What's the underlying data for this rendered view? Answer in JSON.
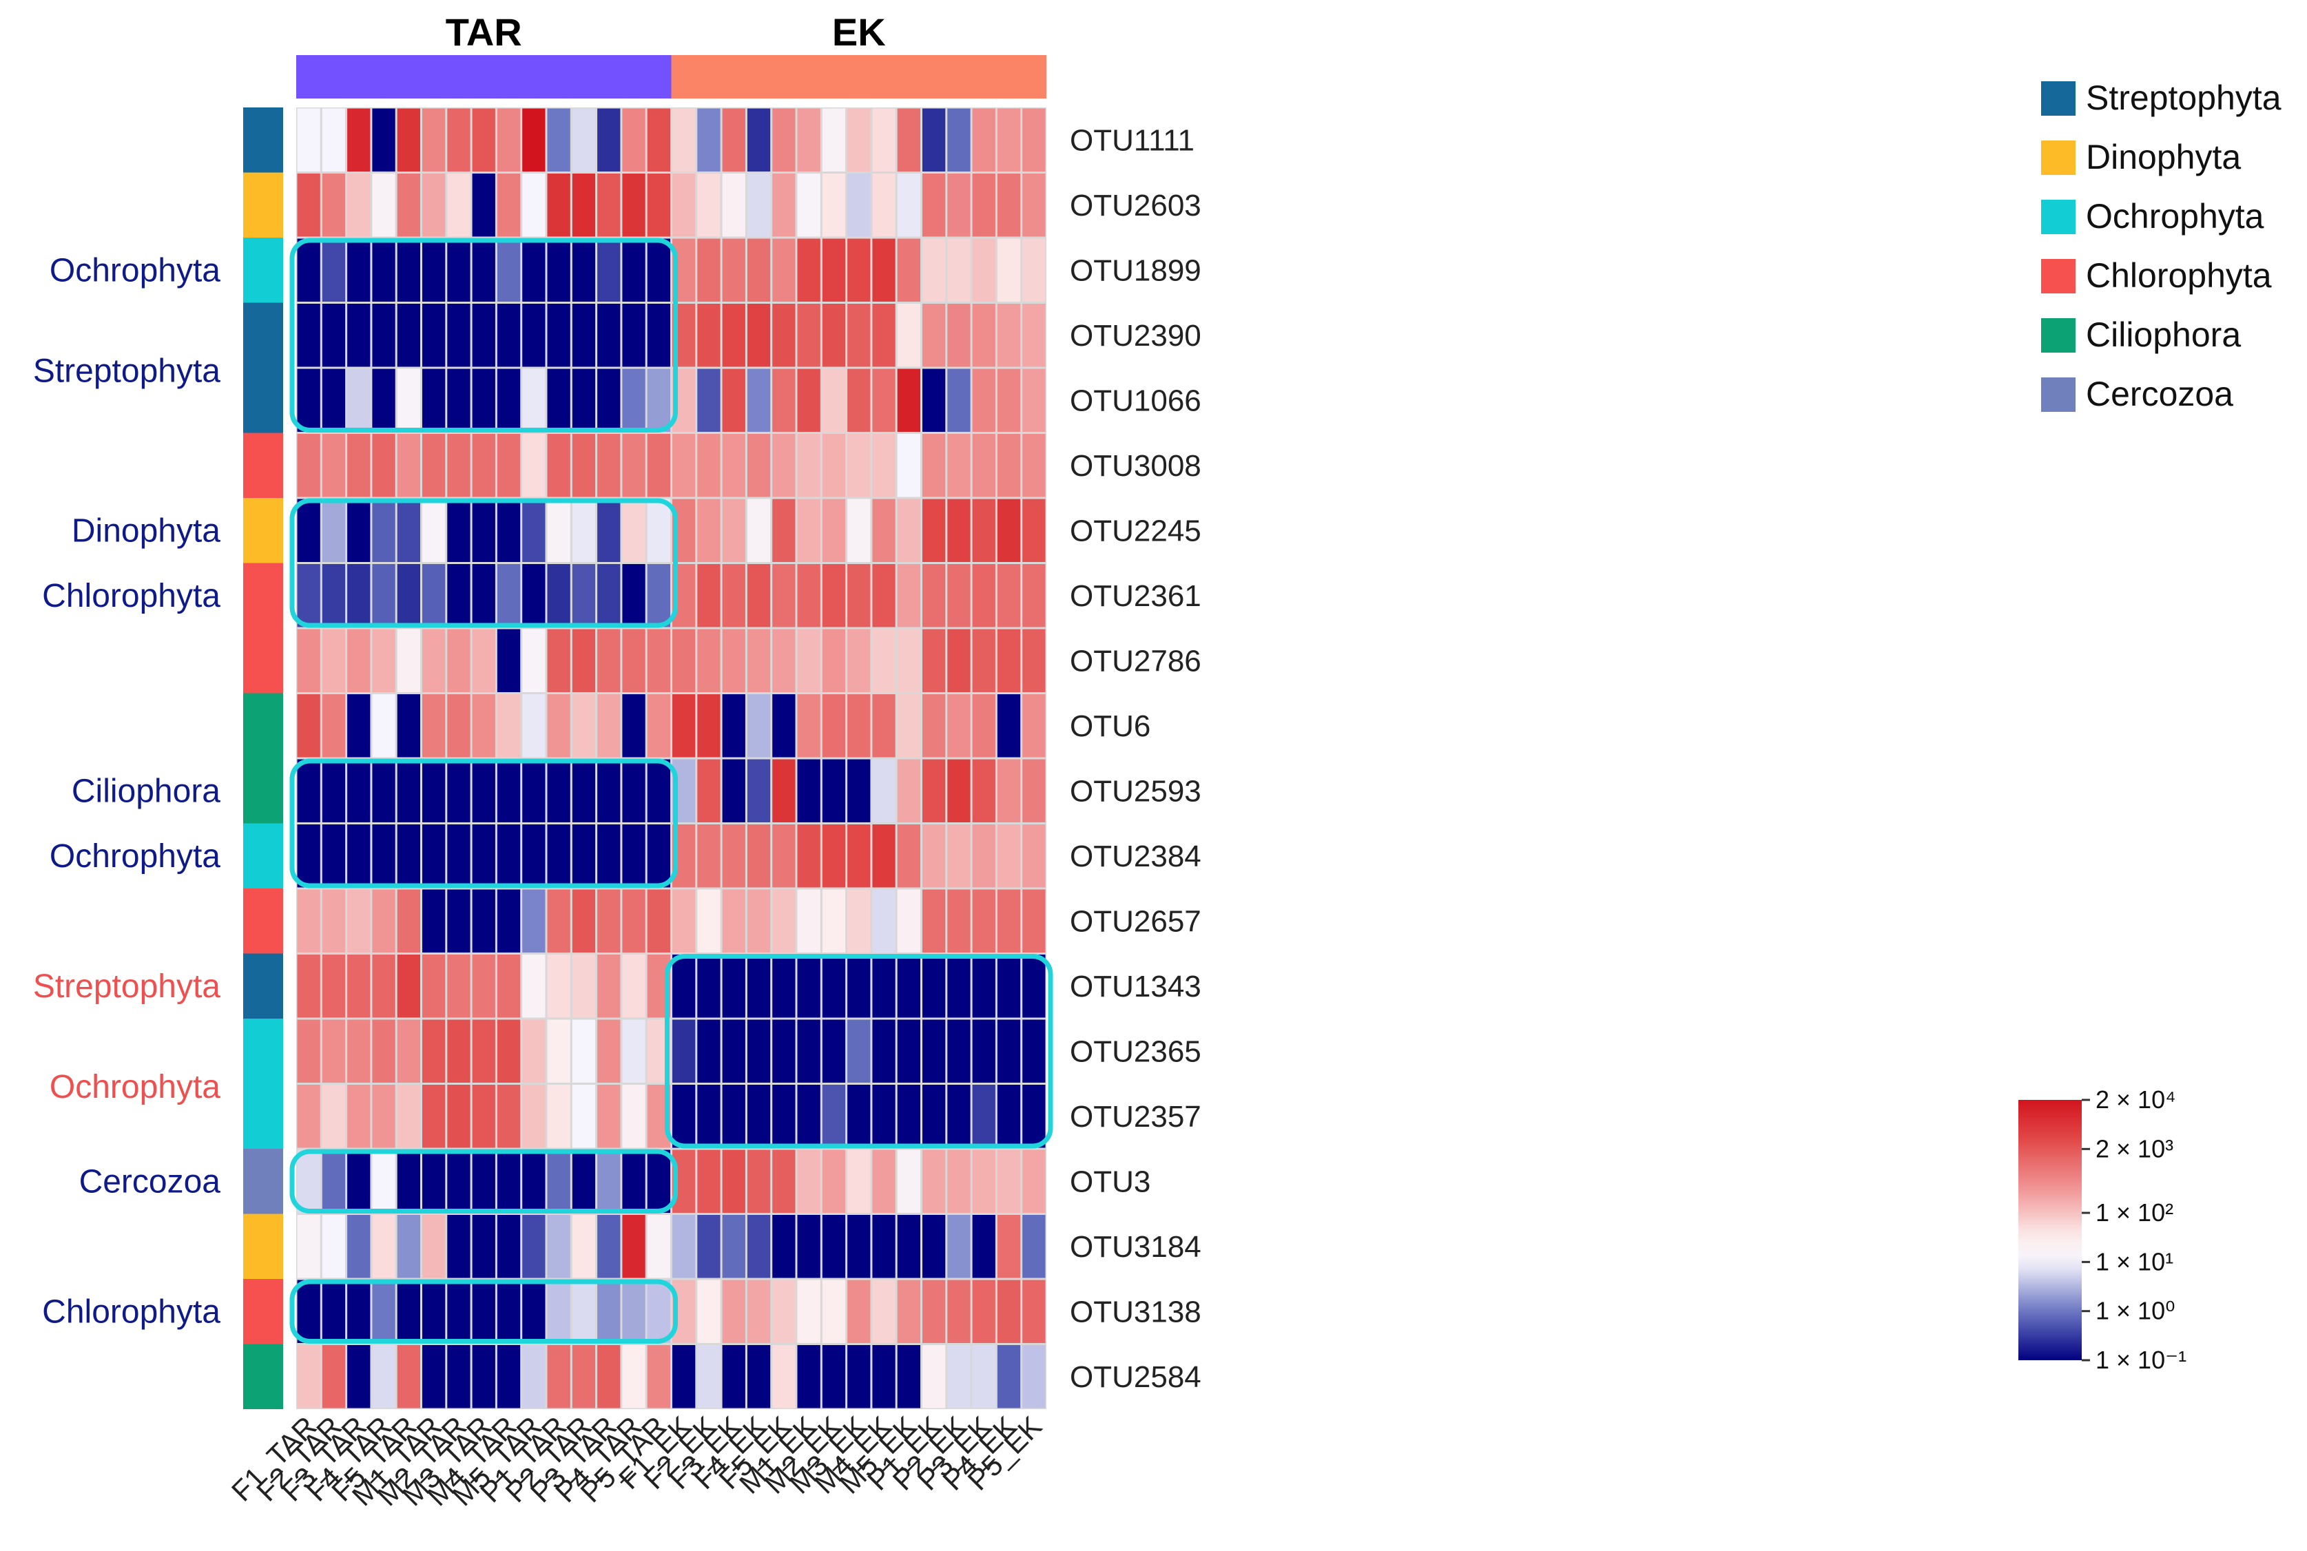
{
  "chart_data": {
    "type": "heatmap",
    "title": "",
    "column_groups": [
      {
        "label": "TAR",
        "color": "#7451ff"
      },
      {
        "label": "EK",
        "color": "#fc8466"
      }
    ],
    "columns": [
      "F1_TAR",
      "F2_TAR",
      "F3_TAR",
      "F4_TAR",
      "F5_TAR",
      "M1_TAR",
      "M2_TAR",
      "M3_TAR",
      "M4_TAR",
      "M5_TAR",
      "P1_TAR",
      "P2_TAR",
      "P3_TAR",
      "P4_TAR",
      "P5_TAR",
      "F1_EK",
      "F2_EK",
      "F3_EK",
      "F4_EK",
      "F5_EK",
      "M1_EK",
      "M2_EK",
      "M3_EK",
      "M4_EK",
      "M5_EK",
      "P1_EK",
      "P2_EK",
      "P3_EK",
      "P4_EK",
      "P5_EK"
    ],
    "rows": [
      "OTU1111",
      "OTU2603",
      "OTU1899",
      "OTU2390",
      "OTU1066",
      "OTU3008",
      "OTU2245",
      "OTU2361",
      "OTU2786",
      "OTU6",
      "OTU2593",
      "OTU2384",
      "OTU2657",
      "OTU1343",
      "OTU2365",
      "OTU2357",
      "OTU3",
      "OTU3184",
      "OTU3138",
      "OTU2584"
    ],
    "row_phylum": [
      "Streptophyta",
      "Dinophyta",
      "Ochrophyta",
      "Streptophyta",
      "Streptophyta",
      "Chlorophyta",
      "Dinophyta",
      "Chlorophyta",
      "Chlorophyta",
      "Ciliophora",
      "Ciliophora",
      "Ochrophyta",
      "Chlorophyta",
      "Streptophyta",
      "Ochrophyta",
      "Ochrophyta",
      "Cercozoa",
      "Dinophyta",
      "Chlorophyta",
      "Ciliophora"
    ],
    "value_scale": "log10 abundance (-1 = 1×10⁻¹ ... 4.3 = 2×10⁴)",
    "values_log10": [
      [
        1.0,
        1.0,
        4.0,
        -1,
        3.8,
        2.7,
        3.1,
        3.3,
        2.7,
        4.3,
        0.0,
        0.8,
        -0.6,
        2.7,
        3.4,
        1.8,
        0.1,
        3.0,
        -0.6,
        2.7,
        2.4,
        1.2,
        2.0,
        1.7,
        3.0,
        -0.6,
        -0.1,
        2.6,
        2.5,
        2.6
      ],
      [
        3.3,
        2.8,
        2.0,
        1.2,
        2.9,
        2.3,
        1.7,
        -1,
        2.8,
        1.0,
        3.8,
        3.9,
        3.3,
        3.8,
        3.5,
        2.1,
        1.7,
        1.3,
        0.8,
        2.4,
        1.1,
        1.6,
        0.7,
        1.7,
        0.9,
        2.9,
        2.7,
        2.9,
        2.9,
        2.6
      ],
      [
        -1,
        -0.4,
        -1,
        -1,
        -1,
        -1,
        -1,
        -1,
        -0.1,
        -1,
        -1,
        -1,
        -0.5,
        -1,
        -1,
        2.7,
        3.0,
        2.9,
        3.0,
        2.7,
        3.5,
        3.6,
        3.5,
        3.7,
        2.9,
        1.8,
        1.8,
        2.0,
        1.6,
        1.8
      ],
      [
        -1,
        -1,
        -1,
        -1,
        -1,
        -1,
        -1,
        -1,
        -1,
        -1,
        -1,
        -1,
        -1,
        -1,
        -1,
        3.2,
        3.4,
        3.5,
        3.6,
        3.4,
        3.2,
        3.4,
        3.2,
        3.3,
        1.6,
        2.6,
        2.7,
        2.6,
        2.4,
        2.3
      ],
      [
        -1,
        -1,
        0.7,
        -1,
        1.1,
        -1,
        -1,
        -1,
        -1,
        0.9,
        -1,
        -1,
        -1,
        0.0,
        0.3,
        2.1,
        -0.3,
        3.4,
        0.1,
        3.0,
        3.4,
        1.9,
        3.2,
        3.0,
        4.1,
        -1,
        -0.1,
        2.7,
        2.7,
        2.4
      ],
      [
        2.9,
        2.7,
        3.0,
        3.1,
        2.6,
        3.0,
        3.0,
        3.0,
        3.0,
        1.7,
        3.1,
        3.1,
        3.0,
        2.8,
        3.0,
        2.5,
        2.6,
        2.5,
        2.7,
        2.4,
        2.1,
        2.2,
        2.0,
        2.0,
        1.0,
        2.6,
        2.5,
        2.6,
        2.7,
        2.6
      ],
      [
        -1,
        0.4,
        -1,
        -0.2,
        -0.4,
        1.1,
        -1,
        -1,
        -1,
        -0.4,
        1.2,
        0.9,
        -0.5,
        1.8,
        0.9,
        2.8,
        2.5,
        2.3,
        1.2,
        3.2,
        2.2,
        2.4,
        1.2,
        2.7,
        2.1,
        3.5,
        3.6,
        3.4,
        3.8,
        3.4
      ],
      [
        -0.4,
        -0.5,
        -0.6,
        -0.2,
        -0.6,
        -0.2,
        -1,
        -1,
        -0.1,
        -1,
        -0.6,
        -0.3,
        -0.5,
        -1,
        -0.1,
        2.9,
        3.3,
        3.1,
        3.3,
        3.0,
        3.1,
        3.3,
        3.2,
        3.3,
        2.4,
        3.0,
        3.0,
        3.1,
        3.0,
        3.0
      ],
      [
        2.6,
        2.2,
        2.5,
        2.2,
        1.3,
        2.3,
        2.5,
        2.2,
        -1,
        1.1,
        3.2,
        3.3,
        3.0,
        3.0,
        2.9,
        2.9,
        2.7,
        2.6,
        2.5,
        2.4,
        2.1,
        2.5,
        2.3,
        1.9,
        1.9,
        3.2,
        3.4,
        3.2,
        3.3,
        3.2
      ],
      [
        3.4,
        2.8,
        -1,
        1.0,
        -1,
        2.8,
        2.9,
        2.6,
        2.0,
        0.9,
        2.5,
        2.0,
        2.3,
        -1,
        2.6,
        3.7,
        3.7,
        -1,
        0.5,
        -1,
        2.7,
        3.0,
        3.0,
        3.0,
        1.9,
        2.8,
        2.6,
        2.8,
        -1,
        2.6
      ],
      [
        -1,
        -1,
        -1,
        -1,
        -1,
        -1,
        -1,
        -1,
        -1,
        -1,
        -1,
        -1,
        -1,
        -1,
        -1,
        0.5,
        3.3,
        -1,
        -0.4,
        3.8,
        -1,
        -1,
        -1,
        0.8,
        2.3,
        3.4,
        3.7,
        3.3,
        2.6,
        2.8
      ],
      [
        -1,
        -1,
        -1,
        -1,
        -1,
        -1,
        -1,
        -1,
        -1,
        -1,
        -1,
        -1,
        -1,
        -1,
        -1,
        2.9,
        2.9,
        2.9,
        3.0,
        2.9,
        3.4,
        3.5,
        3.5,
        3.7,
        2.9,
        2.3,
        2.2,
        2.4,
        2.2,
        2.4
      ],
      [
        2.3,
        2.3,
        2.1,
        2.5,
        3.0,
        -1,
        -1,
        -1,
        -1,
        0.1,
        3.0,
        3.3,
        3.0,
        3.0,
        3.2,
        2.2,
        1.5,
        2.3,
        2.3,
        2.0,
        1.3,
        1.5,
        1.8,
        0.8,
        1.3,
        3.0,
        3.0,
        3.0,
        3.0,
        3.0
      ],
      [
        3.1,
        3.1,
        3.1,
        3.1,
        3.6,
        3.0,
        2.9,
        2.9,
        3.0,
        1.2,
        1.7,
        1.8,
        2.6,
        1.7,
        2.7,
        -1,
        -1,
        -1,
        -1,
        -1,
        -1,
        -1,
        -1,
        -1,
        -1,
        -1,
        -1,
        -1,
        -1,
        -1
      ],
      [
        2.8,
        2.6,
        2.7,
        2.9,
        2.6,
        3.3,
        3.4,
        3.3,
        3.4,
        2.0,
        1.5,
        1.0,
        2.6,
        0.9,
        1.8,
        -0.6,
        -1,
        -1,
        -1,
        -1,
        -1,
        -1,
        -0.1,
        -1,
        -1,
        -1,
        -1,
        -1,
        -1,
        -1
      ],
      [
        2.5,
        1.8,
        2.5,
        2.5,
        2.0,
        3.3,
        3.4,
        3.3,
        3.2,
        2.0,
        1.6,
        1.0,
        2.5,
        1.3,
        2.5,
        -1,
        -1,
        -1,
        -1,
        -1,
        -1,
        -0.3,
        -1,
        -1,
        -1,
        -1,
        -1,
        -0.5,
        -1,
        -1
      ],
      [
        0.8,
        -0.1,
        -1,
        1.0,
        -1,
        -1,
        -1,
        -1,
        -1,
        -1,
        -0.1,
        -1,
        0.2,
        -1,
        -1,
        3.2,
        3.3,
        3.4,
        3.2,
        3.2,
        2.1,
        2.4,
        1.7,
        2.4,
        1.2,
        2.3,
        2.3,
        2.2,
        2.1,
        2.3
      ],
      [
        1.2,
        1.0,
        -0.1,
        1.7,
        0.2,
        2.1,
        -1,
        -1,
        -1,
        -0.4,
        0.5,
        1.6,
        -0.2,
        4.0,
        1.2,
        0.5,
        -0.4,
        -0.1,
        -0.4,
        -1,
        -1,
        -1,
        -1,
        -1,
        -1,
        -1,
        0.2,
        -1,
        3.0,
        -0.1
      ],
      [
        -1,
        -1,
        -1,
        0.0,
        -1,
        -1,
        -1,
        -1,
        -1,
        -1,
        0.6,
        0.8,
        0.2,
        0.4,
        0.6,
        2.1,
        1.5,
        2.4,
        2.3,
        1.9,
        1.4,
        1.5,
        2.6,
        1.8,
        2.6,
        2.9,
        3.0,
        3.1,
        3.2,
        3.1
      ],
      [
        2.0,
        3.1,
        -1,
        0.8,
        3.1,
        -1,
        -1,
        -1,
        -1,
        0.7,
        3.0,
        3.0,
        3.2,
        1.5,
        2.7,
        -1,
        0.8,
        -1,
        -1,
        1.7,
        -1,
        -1,
        -1,
        -1,
        -1,
        1.3,
        0.8,
        0.8,
        -0.2,
        0.6
      ]
    ],
    "highlight_boxes": [
      {
        "rows": [
          "OTU1899",
          "OTU1066"
        ],
        "cols": [
          "F1_TAR",
          "P5_TAR"
        ]
      },
      {
        "rows": [
          "OTU2245",
          "OTU2361"
        ],
        "cols": [
          "F1_TAR",
          "P5_TAR"
        ]
      },
      {
        "rows": [
          "OTU2593",
          "OTU2384"
        ],
        "cols": [
          "F1_TAR",
          "P5_TAR"
        ]
      },
      {
        "rows": [
          "OTU1343",
          "OTU2357"
        ],
        "cols": [
          "F1_EK",
          "P5_EK"
        ]
      },
      {
        "rows": [
          "OTU3",
          "OTU3"
        ],
        "cols": [
          "F1_TAR",
          "P5_TAR"
        ]
      },
      {
        "rows": [
          "OTU3138",
          "OTU3138"
        ],
        "cols": [
          "F1_TAR",
          "P5_TAR"
        ]
      }
    ],
    "side_labels": [
      {
        "text": "Ochrophyta",
        "row": "OTU1899",
        "color": "#0f1a8a"
      },
      {
        "text": "Streptophyta",
        "row": "OTU2390",
        "offset": 0.55,
        "color": "#0f1a8a"
      },
      {
        "text": "Dinophyta",
        "row": "OTU2245",
        "color": "#0f1a8a"
      },
      {
        "text": "Chlorophyta",
        "row": "OTU2361",
        "color": "#0f1a8a"
      },
      {
        "text": "Ciliophora",
        "row": "OTU2593",
        "color": "#0f1a8a"
      },
      {
        "text": "Ochrophyta",
        "row": "OTU2384",
        "color": "#0f1a8a"
      },
      {
        "text": "Streptophyta",
        "row": "OTU1343",
        "color": "#ef4f4f"
      },
      {
        "text": "Ochrophyta",
        "row": "OTU2365",
        "offset": 0.55,
        "color": "#ef4f4f"
      },
      {
        "text": "Cercozoa",
        "row": "OTU3",
        "color": "#0f1a8a"
      },
      {
        "text": "Chlorophyta",
        "row": "OTU3138",
        "color": "#0f1a8a"
      }
    ],
    "legend": [
      {
        "label": "Streptophyta",
        "color": "#14699a"
      },
      {
        "label": "Dinophyta",
        "color": "#fcbb27"
      },
      {
        "label": "Ochrophyta",
        "color": "#12cdd4"
      },
      {
        "label": "Chlorophyta",
        "color": "#f6504f"
      },
      {
        "label": "Ciliophora",
        "color": "#0ca274"
      },
      {
        "label": "Cercozoa",
        "color": "#6f80bd"
      }
    ],
    "colorbar": {
      "min_log10": -1,
      "max_log10": 4.3,
      "ticks": [
        {
          "label": "2 × 10⁴",
          "log10": 4.3
        },
        {
          "label": "2 × 10³",
          "log10": 3.3
        },
        {
          "label": "1 × 10²",
          "log10": 2.0
        },
        {
          "label": "1 × 10¹",
          "log10": 1.0
        },
        {
          "label": "1 × 10⁰",
          "log10": 0.0
        },
        {
          "label": "1 × 10⁻¹",
          "log10": -1.0
        }
      ]
    }
  }
}
